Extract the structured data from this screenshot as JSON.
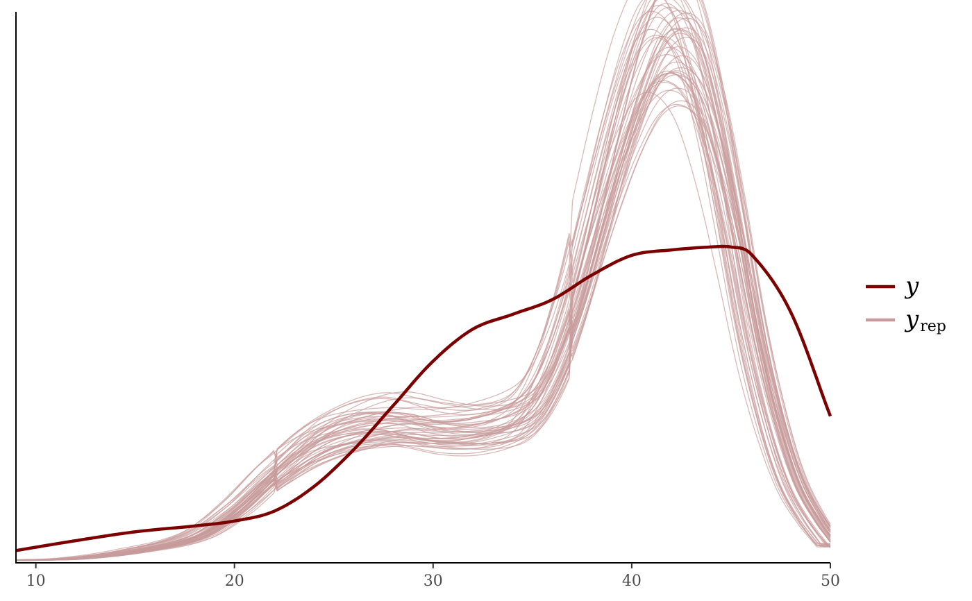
{
  "chart_data": {
    "type": "line",
    "title": "",
    "xlabel": "",
    "ylabel": "",
    "xlim": [
      9,
      50
    ],
    "ylim": [
      0,
      0.112
    ],
    "x_ticks": [
      10,
      20,
      30,
      40,
      50
    ],
    "grid": false,
    "legend_placement": "right",
    "legend": [
      {
        "key": "y",
        "main": "y",
        "sub": ""
      },
      {
        "key": "yrep",
        "main": "y",
        "sub": "rep"
      }
    ],
    "colors": {
      "y": "#7b0000",
      "yrep": "#c79b9b"
    },
    "y_series": {
      "name": "y",
      "x": [
        9,
        12,
        15,
        18,
        20,
        22,
        24,
        26,
        28,
        30,
        32,
        34,
        36,
        38,
        40,
        42,
        44,
        45,
        46,
        48,
        50
      ],
      "values": [
        0.0025,
        0.0045,
        0.0063,
        0.0075,
        0.0085,
        0.0105,
        0.0155,
        0.023,
        0.032,
        0.041,
        0.0475,
        0.0505,
        0.0535,
        0.0585,
        0.0625,
        0.0636,
        0.0642,
        0.0642,
        0.0628,
        0.051,
        0.0298
      ]
    },
    "yrep_template": {
      "x": [
        9,
        12,
        15,
        18,
        20,
        22,
        24,
        26,
        28,
        30,
        32,
        34,
        35,
        36,
        37,
        38,
        39,
        40,
        41,
        42,
        43,
        44,
        45,
        46,
        47,
        48,
        49,
        50
      ],
      "values": [
        0.0005,
        0.0009,
        0.0025,
        0.0055,
        0.011,
        0.0185,
        0.0245,
        0.0275,
        0.0285,
        0.0275,
        0.0275,
        0.0295,
        0.033,
        0.041,
        0.053,
        0.068,
        0.083,
        0.096,
        0.105,
        0.107,
        0.102,
        0.088,
        0.068,
        0.046,
        0.029,
        0.0165,
        0.009,
        0.0035
      ]
    },
    "yrep_draws": 50
  }
}
